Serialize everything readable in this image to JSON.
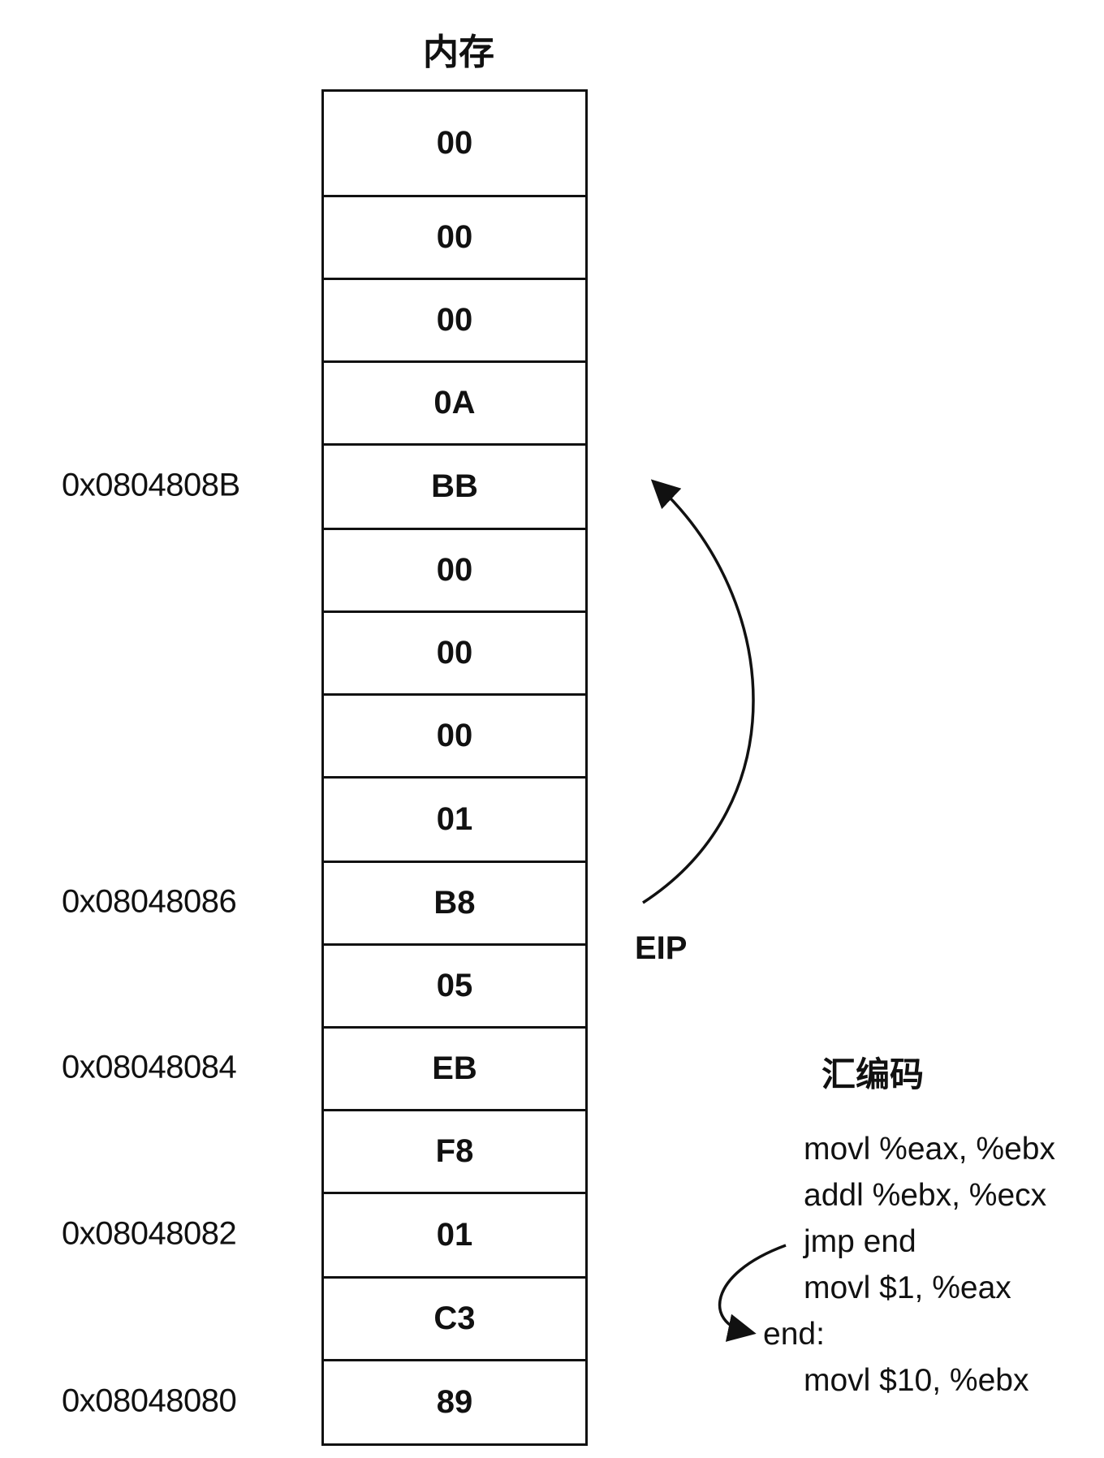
{
  "memory": {
    "title": "内存",
    "cells": [
      "00",
      "00",
      "00",
      "0A",
      "BB",
      "00",
      "00",
      "00",
      "01",
      "B8",
      "05",
      "EB",
      "F8",
      "01",
      "C3",
      "89"
    ],
    "addresses": [
      {
        "label": "0x0804808B",
        "cell": 4
      },
      {
        "label": "0x08048086",
        "cell": 9
      },
      {
        "label": "0x08048084",
        "cell": 11
      },
      {
        "label": "0x08048082",
        "cell": 13
      },
      {
        "label": "0x08048080",
        "cell": 15
      }
    ]
  },
  "eip": {
    "label": "EIP"
  },
  "assembly": {
    "title": "汇编码",
    "lines": [
      {
        "text": "movl %eax, %ebx",
        "indent": true
      },
      {
        "text": "addl %ebx, %ecx",
        "indent": true
      },
      {
        "text": "jmp end",
        "indent": true
      },
      {
        "text": "movl $1, %eax",
        "indent": true
      },
      {
        "text": "end:",
        "indent": false
      },
      {
        "text": "movl $10, %ebx",
        "indent": true
      }
    ]
  }
}
